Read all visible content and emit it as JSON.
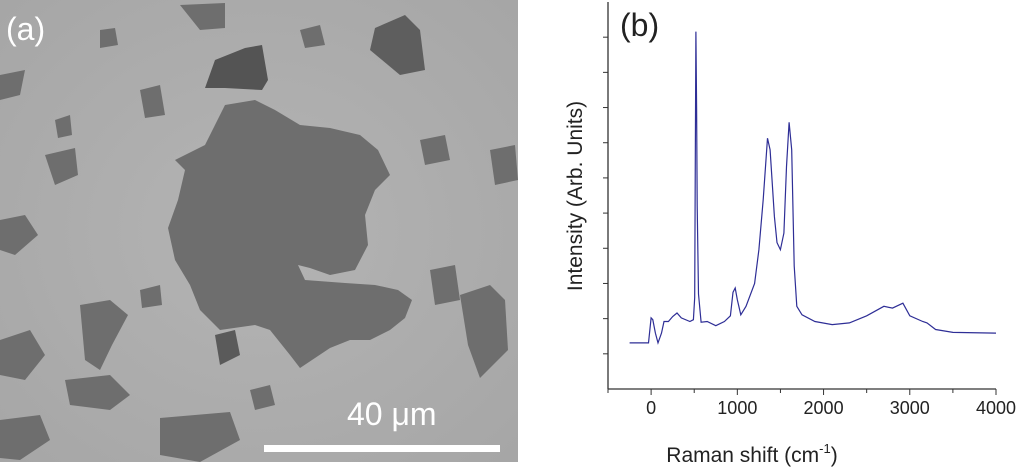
{
  "panel_a": {
    "label": "(a)",
    "scale_bar_label": "40 μm"
  },
  "chart_data": {
    "type": "line",
    "panel_label": "(b)",
    "xlabel": "Raman shift (cm",
    "xlabel_superscript": "-1",
    "xlabel_suffix": ")",
    "ylabel": "Intensity (Arb. Units)",
    "xlim": [
      -500,
      4000
    ],
    "ylim": [
      0,
      11
    ],
    "x_ticks": [
      0,
      1000,
      2000,
      3000,
      4000
    ],
    "x_tick_labels": [
      "0",
      "1000",
      "2000",
      "3000",
      "4000"
    ],
    "y_tick_labels_shown": false,
    "grid": false,
    "line_color": "#2e2e96",
    "series": [
      {
        "x": [
          -250,
          -30,
          0,
          20,
          50,
          80,
          120,
          150,
          200,
          250,
          300,
          350,
          450,
          490,
          505,
          512,
          520,
          528,
          535,
          550,
          580,
          650,
          750,
          850,
          920,
          950,
          975,
          1000,
          1040,
          1100,
          1200,
          1250,
          1300,
          1350,
          1380,
          1430,
          1460,
          1500,
          1540,
          1570,
          1600,
          1630,
          1660,
          1690,
          1750,
          1900,
          2100,
          2300,
          2500,
          2700,
          2800,
          2920,
          3000,
          3150,
          3200,
          3300,
          3500,
          4000
        ],
        "y": [
          1.31,
          1.31,
          2.02,
          1.97,
          1.59,
          1.31,
          1.59,
          1.92,
          1.92,
          2.06,
          2.16,
          2.02,
          1.92,
          1.97,
          2.6,
          6.5,
          10.16,
          8.0,
          5.2,
          2.7,
          1.9,
          1.92,
          1.8,
          1.92,
          2.08,
          2.75,
          2.87,
          2.54,
          2.11,
          2.35,
          3.0,
          3.96,
          5.38,
          7.13,
          6.8,
          4.9,
          4.16,
          3.96,
          4.43,
          6.32,
          7.58,
          6.8,
          3.5,
          2.35,
          2.11,
          1.92,
          1.83,
          1.88,
          2.08,
          2.35,
          2.3,
          2.44,
          2.08,
          1.92,
          1.88,
          1.69,
          1.61,
          1.59
        ]
      }
    ]
  }
}
